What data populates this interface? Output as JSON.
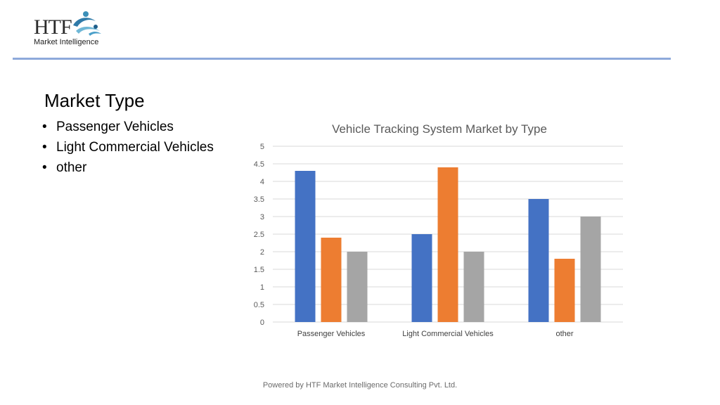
{
  "logo": {
    "wordmark": "HTF",
    "tagline": "Market Intelligence",
    "mark_icon": "swimmers-logo-icon"
  },
  "slide": {
    "title": "Market Type",
    "bullets": [
      "Passenger Vehicles",
      "Light Commercial Vehicles",
      "other"
    ]
  },
  "colors": {
    "series1": "#4472c4",
    "series2": "#ed7d31",
    "series3": "#a5a5a5",
    "rule": "#8eaadb",
    "grid": "#d9d9d9"
  },
  "chart_data": {
    "type": "bar",
    "title": "Vehicle Tracking System Market by Type",
    "categories": [
      "Passenger Vehicles",
      "Light Commercial Vehicles",
      "other"
    ],
    "series": [
      {
        "values": [
          4.3,
          2.5,
          3.5
        ]
      },
      {
        "values": [
          2.4,
          4.4,
          1.8
        ]
      },
      {
        "values": [
          2.0,
          2.0,
          3.0
        ]
      }
    ],
    "ylim": [
      0,
      5
    ],
    "yticks": [
      "0",
      "0.5",
      "1",
      "1.5",
      "2",
      "2.5",
      "3",
      "3.5",
      "4",
      "4.5",
      "5"
    ],
    "grid": true,
    "legend": "none"
  },
  "footer": {
    "text": "Powered by HTF Market Intelligence Consulting Pvt. Ltd."
  }
}
